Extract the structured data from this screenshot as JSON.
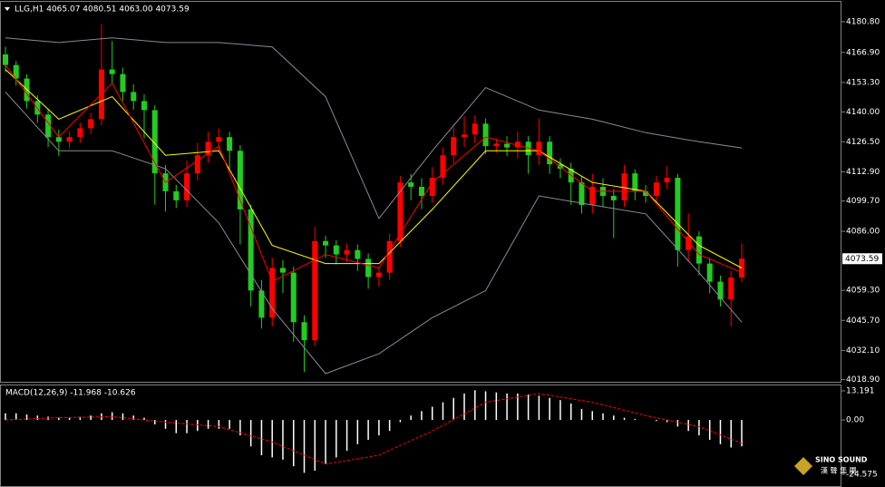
{
  "chart_data": [
    {
      "type": "candlestick",
      "title": "LLG,H1  4065.07 4080.51 4063.00 4073.59",
      "up_color": "#ff0000",
      "down_color": "#22cc22",
      "open": [
        4166.0,
        4161.2,
        4155.1,
        4144.9,
        4138.8,
        4128.6,
        4126.5,
        4128.6,
        4132.6,
        4136.7,
        4159.2,
        4157.1,
        4149.0,
        4144.9,
        4140.8,
        4112.2,
        4104.1,
        4100.0,
        4112.2,
        4120.4,
        4126.5,
        4128.6,
        4122.4,
        4095.9,
        4059.2,
        4046.9,
        4069.4,
        4067.3,
        4044.9,
        4036.7,
        4081.6,
        4079.6,
        4075.5,
        4077.5,
        4073.5,
        4065.3,
        4067.3,
        4081.6,
        4108.1,
        4106.1,
        4102.0,
        4110.2,
        4120.4,
        4128.6,
        4129.8,
        4134.7,
        4124.5,
        4125.6,
        4123.9,
        4126.5,
        4120.4,
        4126.5,
        4116.3,
        4114.3,
        4108.1,
        4097.9,
        4106.1,
        4102.0,
        4100.0,
        4112.2,
        4104.1,
        4102.0,
        4108.1,
        4110.2,
        4077.5,
        4083.7,
        4071.4,
        4063.2,
        4055.1,
        4065.07
      ],
      "high": [
        4169.5,
        4163.0,
        4157.0,
        4147.5,
        4141.0,
        4132.0,
        4131.0,
        4135.0,
        4139.5,
        4179.6,
        4172.0,
        4160.0,
        4152.5,
        4148.0,
        4143.0,
        4116.0,
        4107.0,
        4118.0,
        4126.0,
        4131.0,
        4132.5,
        4131.0,
        4125.0,
        4098.0,
        4064.0,
        4074.0,
        4073.0,
        4070.0,
        4048.0,
        4088.0,
        4084.0,
        4082.0,
        4080.5,
        4080.0,
        4076.0,
        4070.0,
        4085.0,
        4111.0,
        4112.0,
        4110.0,
        4115.0,
        4124.0,
        4133.0,
        4138.0,
        4138.5,
        4137.0,
        4128.0,
        4129.0,
        4131.0,
        4129.0,
        4137.0,
        4129.0,
        4119.0,
        4117.0,
        4111.0,
        4112.0,
        4110.0,
        4105.0,
        4116.0,
        4114.0,
        4107.0,
        4111.0,
        4115.5,
        4112.0,
        4094.0,
        4086.0,
        4074.0,
        4066.0,
        4068.0,
        4080.51
      ],
      "low": [
        4158.0,
        4152.0,
        4141.5,
        4135.0,
        4124.0,
        4120.0,
        4123.5,
        4126.0,
        4130.0,
        4134.0,
        4153.0,
        4145.0,
        4141.0,
        4128.0,
        4098.0,
        4095.0,
        4096.5,
        4097.0,
        4109.0,
        4117.0,
        4122.0,
        4114.0,
        4080.0,
        4052.0,
        4042.0,
        4043.0,
        4058.0,
        4036.0,
        4022.4,
        4034.0,
        4074.0,
        4071.0,
        4072.0,
        4068.0,
        4060.0,
        4061.0,
        4064.0,
        4079.0,
        4100.0,
        4096.0,
        4099.0,
        4107.0,
        4117.0,
        4124.0,
        4126.0,
        4121.0,
        4121.5,
        4120.0,
        4119.0,
        4112.0,
        4116.0,
        4112.0,
        4110.0,
        4098.0,
        4094.0,
        4094.0,
        4097.0,
        4083.0,
        4097.0,
        4100.0,
        4099.0,
        4099.0,
        4105.0,
        4070.0,
        4072.0,
        4066.0,
        4058.0,
        4052.0,
        4043.0,
        4063.0
      ],
      "close": [
        4161.2,
        4155.1,
        4144.9,
        4138.8,
        4128.6,
        4126.5,
        4128.6,
        4132.6,
        4136.7,
        4159.2,
        4157.1,
        4149.0,
        4144.9,
        4140.8,
        4112.2,
        4104.1,
        4100.0,
        4112.2,
        4120.4,
        4126.5,
        4128.6,
        4122.4,
        4095.9,
        4059.2,
        4046.9,
        4069.4,
        4067.3,
        4044.9,
        4036.7,
        4081.6,
        4079.6,
        4075.5,
        4077.5,
        4073.5,
        4065.3,
        4067.3,
        4081.6,
        4108.1,
        4106.1,
        4102.0,
        4110.2,
        4120.4,
        4128.6,
        4129.8,
        4134.7,
        4124.5,
        4125.6,
        4123.9,
        4126.5,
        4120.4,
        4126.5,
        4116.3,
        4114.3,
        4108.1,
        4097.9,
        4106.1,
        4102.0,
        4100.0,
        4112.2,
        4104.1,
        4102.0,
        4108.1,
        4110.2,
        4077.5,
        4083.7,
        4071.4,
        4063.2,
        4055.1,
        4065.07,
        4073.59
      ],
      "line_x": [
        0,
        5,
        10,
        15,
        20,
        25,
        30,
        35,
        40,
        45,
        50,
        55,
        60,
        65,
        69
      ],
      "lines": [
        {
          "color": "#8a8a9a",
          "values": [
            4173.5,
            4171.4,
            4173.5,
            4171.4,
            4171.4,
            4169.4,
            4146.9,
            4091.8,
            4122.4,
            4151.0,
            4140.8,
            4136.7,
            4130.6,
            4126.5,
            4123.7
          ]
        },
        {
          "color": "#8a8a9a",
          "values": [
            4149.0,
            4122.4,
            4122.4,
            4114.3,
            4089.8,
            4051.0,
            4021.6,
            4030.6,
            4046.9,
            4059.2,
            4102.0,
            4097.9,
            4093.9,
            4067.3,
            4044.9
          ]
        },
        {
          "color": "#ffff00",
          "values": [
            4159.2,
            4136.7,
            4146.9,
            4120.4,
            4122.4,
            4079.6,
            4071.4,
            4071.4,
            4095.9,
            4122.4,
            4122.4,
            4108.1,
            4104.1,
            4079.6,
            4069.4
          ]
        },
        {
          "color": "#ff0000",
          "values": [
            4161.2,
            4128.6,
            4153.0,
            4108.1,
            4124.5,
            4063.2,
            4075.5,
            4069.4,
            4108.1,
            4128.6,
            4122.4,
            4104.1,
            4104.1,
            4075.5,
            4067.3
          ]
        }
      ],
      "ylim": [
        4017.5,
        4189.8
      ],
      "yticks": [
        {
          "value": 4180.8,
          "label": "4180.80"
        },
        {
          "value": 4166.9,
          "label": "4166.90"
        },
        {
          "value": 4153.3,
          "label": "4153.30"
        },
        {
          "value": 4140.0,
          "label": "4140.00"
        },
        {
          "value": 4126.5,
          "label": "4126.50"
        },
        {
          "value": 4112.9,
          "label": "4112.90"
        },
        {
          "value": 4099.7,
          "label": "4099.70"
        },
        {
          "value": 4086.0,
          "label": "4086.00"
        },
        {
          "value": 4059.3,
          "label": "4059.30"
        },
        {
          "value": 4045.7,
          "label": "4045.70"
        },
        {
          "value": 4032.1,
          "label": "4032.10"
        },
        {
          "value": 4018.9,
          "label": "4018.90"
        }
      ]
    },
    {
      "type": "macd",
      "title": "MACD(12,26,9) -11.968 -10.626",
      "color": "#ffffff",
      "values": [
        3,
        3,
        2.5,
        2,
        1.5,
        1,
        1,
        1.5,
        2,
        3,
        3.5,
        3,
        2,
        1,
        -2,
        -4,
        -6,
        -6,
        -5,
        -4,
        -4,
        -4,
        -7,
        -12,
        -16,
        -17,
        -18,
        -21,
        -24,
        -23,
        -20,
        -17,
        -14,
        -11,
        -9,
        -7,
        -5,
        -1,
        2,
        4,
        6,
        8,
        10,
        12,
        13.5,
        13,
        12.5,
        12,
        12,
        11.5,
        11,
        10,
        9,
        7.5,
        5,
        4,
        3,
        2,
        1,
        0.5,
        0,
        -0.5,
        -1,
        -3,
        -5,
        -7,
        -9,
        -11,
        -12.5,
        -11.968
      ],
      "signal_color": "#ff0000",
      "signal_x": [
        0,
        5,
        10,
        15,
        20,
        25,
        30,
        35,
        40,
        45,
        50,
        55,
        60,
        65,
        69
      ],
      "signal": [
        0,
        1,
        1.5,
        -1,
        -3,
        -10,
        -20,
        -16,
        -5,
        8,
        12,
        8,
        2,
        -3,
        -10.626
      ],
      "ylim": [
        -29.6,
        15.66
      ],
      "yticks": [
        13.191,
        {
          "value": 0,
          "label": "0.00"
        },
        -24.575
      ]
    }
  ],
  "logo": {
    "name": "SINO SOUND",
    "subtitle": "漢 聲 集 團"
  }
}
